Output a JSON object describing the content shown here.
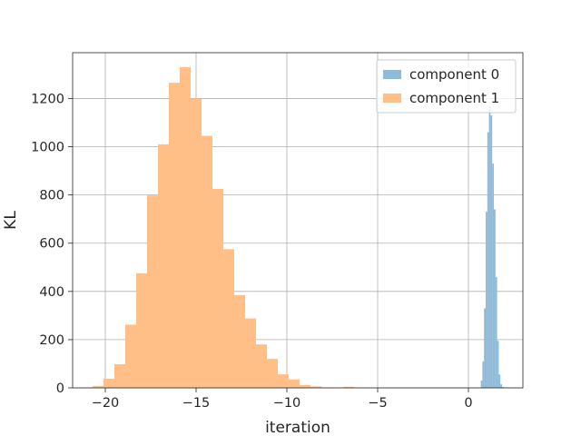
{
  "chart_data": {
    "type": "histogram",
    "title": "",
    "xlabel": "iteration",
    "ylabel": "KL",
    "xlim": [
      -21.8,
      3.0
    ],
    "ylim": [
      0,
      1390
    ],
    "xticks": [
      -20,
      -15,
      -10,
      -5,
      0
    ],
    "xtick_labels": [
      "−20",
      "−15",
      "−10",
      "−5",
      "0"
    ],
    "yticks": [
      0,
      200,
      400,
      600,
      800,
      1000,
      1200
    ],
    "ytick_labels": [
      "0",
      "200",
      "400",
      "600",
      "800",
      "1000",
      "1200"
    ],
    "grid": true,
    "legend_position": "upper right",
    "series": [
      {
        "name": "component 0",
        "color": "#8fbbd9",
        "bin_edges": [
          0.68,
          0.77,
          0.86,
          0.95,
          1.04,
          1.13,
          1.22,
          1.31,
          1.4,
          1.49,
          1.58,
          1.67,
          1.76,
          1.85,
          1.94
        ],
        "counts": [
          30,
          110,
          330,
          730,
          1060,
          1170,
          1130,
          930,
          740,
          460,
          195,
          55,
          15,
          4
        ]
      },
      {
        "name": "component 1",
        "color": "#ffbf86",
        "bin_edges": [
          -20.7,
          -20.1,
          -19.5,
          -18.9,
          -18.3,
          -17.7,
          -17.1,
          -16.5,
          -15.9,
          -15.3,
          -14.7,
          -14.1,
          -13.5,
          -12.9,
          -12.3,
          -11.7,
          -11.1,
          -10.5,
          -9.9,
          -9.3,
          -8.7,
          -8.1,
          -7.5,
          -6.9,
          -6.3
        ],
        "counts": [
          8,
          38,
          98,
          262,
          475,
          798,
          1010,
          1265,
          1330,
          1200,
          1045,
          825,
          575,
          385,
          288,
          180,
          120,
          56,
          35,
          12,
          6,
          2,
          1,
          4
        ]
      }
    ]
  }
}
